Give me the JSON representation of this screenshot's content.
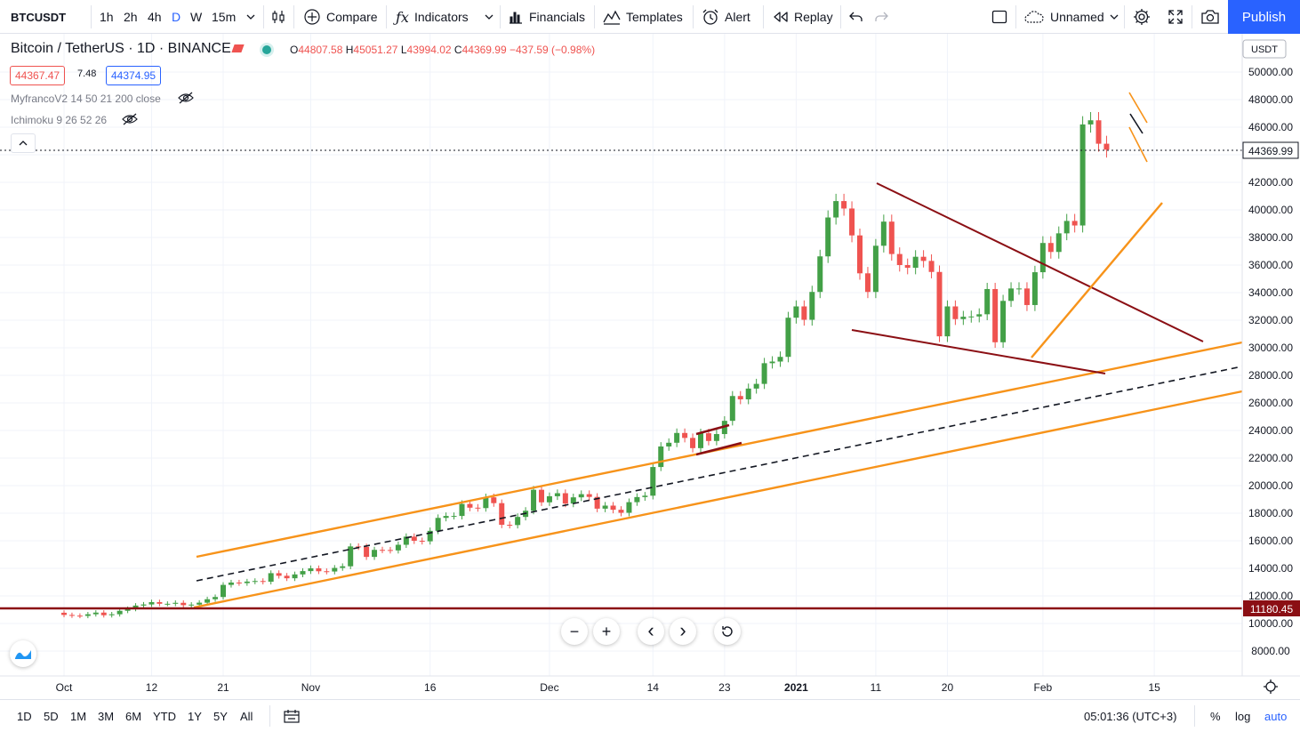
{
  "toolbar": {
    "symbol": "BTCUSDT",
    "intervals": [
      "1h",
      "2h",
      "4h",
      "D",
      "W",
      "15m"
    ],
    "active_interval": "D",
    "compare": "Compare",
    "indicators": "Indicators",
    "financials": "Financials",
    "templates": "Templates",
    "alert": "Alert",
    "replay": "Replay",
    "layout_name": "Unnamed",
    "publish": "Publish"
  },
  "legend": {
    "title": "Bitcoin / TetherUS · 1D · BINANCE",
    "ohlc": {
      "o_label": "O",
      "o": "44807.58",
      "h_label": "H",
      "h": "45051.27",
      "l_label": "L",
      "l": "43994.02",
      "c_label": "C",
      "c": "44369.99",
      "change": "−437.59 (−0.98%)"
    },
    "bid": "44367.47",
    "spread": "7.48",
    "ask": "44374.95",
    "indicator1": "MyfrancoV2 14 50 21 200 close",
    "indicator2": "Ichimoku 9 26 52 26"
  },
  "price_axis": {
    "currency": "USDT",
    "current_price_label": "44369.99",
    "hline_label": "11180.45"
  },
  "chart_data": {
    "type": "candlestick",
    "title": "Bitcoin / TetherUS · 1D · BINANCE",
    "y_ticks": [
      8000,
      10000,
      12000,
      14000,
      16000,
      18000,
      20000,
      22000,
      24000,
      26000,
      28000,
      30000,
      32000,
      34000,
      36000,
      38000,
      40000,
      42000,
      44000,
      46000,
      48000,
      50000
    ],
    "x_tick_labels": [
      "Oct",
      "12",
      "21",
      "Nov",
      "16",
      "Dec",
      "14",
      "23",
      "2021",
      "11",
      "20",
      "Feb",
      "15"
    ],
    "x_tick_dates": [
      "2020-10-01",
      "2020-10-12",
      "2020-10-21",
      "2020-11-01",
      "2020-11-16",
      "2020-12-01",
      "2020-12-14",
      "2020-12-23",
      "2021-01-01",
      "2021-01-11",
      "2021-01-20",
      "2021-02-01",
      "2021-02-15"
    ],
    "current_price": 44369.99,
    "horizontal_line": 11180.45,
    "start_date": "2020-09-30",
    "closes": [
      10780,
      10620,
      10570,
      10550,
      10670,
      10790,
      10600,
      10670,
      10920,
      11060,
      11300,
      11380,
      11550,
      11430,
      11430,
      11500,
      11330,
      11370,
      11510,
      11760,
      11920,
      12800,
      12970,
      12930,
      13040,
      13080,
      13030,
      13650,
      13460,
      13280,
      13560,
      13800,
      14000,
      13790,
      13770,
      14030,
      14150,
      15590,
      15560,
      14830,
      15340,
      15330,
      15300,
      15710,
      16300,
      16000,
      15960,
      16720,
      17660,
      17800,
      17800,
      18670,
      18400,
      18370,
      19150,
      18730,
      17160,
      17140,
      17730,
      18180,
      19700,
      18790,
      19230,
      19450,
      18700,
      19150,
      19380,
      19180,
      18330,
      18550,
      18250,
      18030,
      18800,
      19170,
      19270,
      21350,
      22840,
      23110,
      23820,
      23460,
      22720,
      23800,
      23240,
      23740,
      24700,
      26500,
      26260,
      27040,
      27380,
      28880,
      29000,
      29340,
      32180,
      33000,
      32030,
      34050,
      36630,
      39450,
      40640,
      40100,
      38150,
      35400,
      34050,
      37400,
      39150,
      36800,
      36000,
      35800,
      36600,
      36300,
      35500,
      30830,
      33000,
      32080,
      32250,
      32270,
      32430,
      34260,
      30400,
      33400,
      34300,
      34300,
      33100,
      35480,
      37600,
      36950,
      38300,
      39200,
      38870,
      46200,
      46500,
      44800,
      44370
    ]
  },
  "nav": {
    "zoom_out": "−",
    "zoom_in": "+",
    "scroll_left": "‹",
    "scroll_right": "›",
    "reset": "reset-icon"
  },
  "bottom": {
    "ranges": [
      "1D",
      "5D",
      "1M",
      "3M",
      "6M",
      "YTD",
      "1Y",
      "5Y",
      "All"
    ],
    "time": "05:01:36 (UTC+3)",
    "percent": "%",
    "log": "log",
    "auto": "auto"
  },
  "colors": {
    "up": "#26a69a",
    "up_body": "#43a047",
    "down": "#ef5350",
    "orange": "#f7931a",
    "dark_red": "#8b0f14",
    "accent": "#2962ff"
  }
}
